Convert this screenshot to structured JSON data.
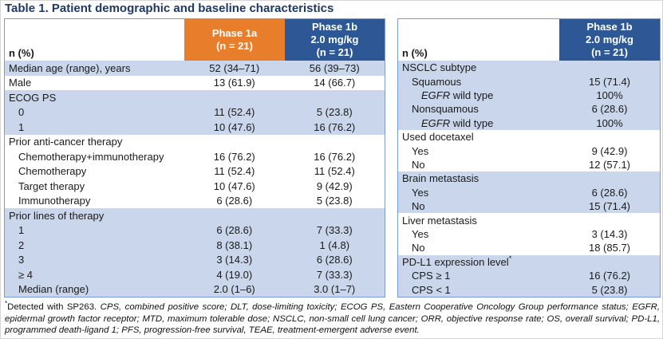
{
  "title": "Table 1. Patient demographic and baseline characteristics",
  "colors": {
    "phase1a_orange": "#E87E2B",
    "phase1b_blue": "#2D5795",
    "row_shade_blue": "#C9D6EB",
    "table_border_blue": "#7C9BD4",
    "title_navy": "#1F3864",
    "body_text": "#1A1A1A"
  },
  "left_table": {
    "header": {
      "label": "n (%)",
      "phase1a_lines": [
        "Phase 1a",
        "(n = 21)"
      ],
      "phase1b_lines": [
        "Phase 1b",
        "2.0 mg/kg",
        "(n = 21)"
      ]
    },
    "rows": [
      {
        "label": "Median age (range), years",
        "indent": 0,
        "values": [
          "52 (34–71)",
          "56 (39–73)"
        ],
        "shade": true
      },
      {
        "label": "Male",
        "indent": 0,
        "values": [
          "13 (61.9)",
          "14 (66.7)"
        ],
        "shade": false
      },
      {
        "label": "ECOG PS",
        "indent": 0,
        "values": [
          "",
          ""
        ],
        "shade": true
      },
      {
        "label": "0",
        "indent": 1,
        "values": [
          "11 (52.4)",
          "5 (23.8)"
        ],
        "shade": true
      },
      {
        "label": "1",
        "indent": 1,
        "values": [
          "10 (47.6)",
          "16 (76.2)"
        ],
        "shade": true
      },
      {
        "label": "Prior anti-cancer therapy",
        "indent": 0,
        "values": [
          "",
          ""
        ],
        "shade": false
      },
      {
        "label": "Chemotherapy+immunotherapy",
        "indent": 1,
        "values": [
          "16 (76.2)",
          "16 (76.2)"
        ],
        "shade": false
      },
      {
        "label": "Chemotherapy",
        "indent": 1,
        "values": [
          "11 (52.4)",
          "11 (52.4)"
        ],
        "shade": false
      },
      {
        "label": "Target therapy",
        "indent": 1,
        "values": [
          "10 (47.6)",
          "9 (42.9)"
        ],
        "shade": false
      },
      {
        "label": "Immunotherapy",
        "indent": 1,
        "values": [
          "6 (28.6)",
          "5 (23.8)"
        ],
        "shade": false
      },
      {
        "label": "Prior lines of therapy",
        "indent": 0,
        "values": [
          "",
          ""
        ],
        "shade": true
      },
      {
        "label": "1",
        "indent": 1,
        "values": [
          "6 (28.6)",
          "7 (33.3)"
        ],
        "shade": true
      },
      {
        "label": "2",
        "indent": 1,
        "values": [
          "8 (38.1)",
          "1 (4.8)"
        ],
        "shade": true
      },
      {
        "label": "3",
        "indent": 1,
        "values": [
          "3 (14.3)",
          "6 (28.6)"
        ],
        "shade": true
      },
      {
        "label": "≥ 4",
        "indent": 1,
        "values": [
          "4 (19.0)",
          "7 (33.3)"
        ],
        "shade": true
      },
      {
        "label": "Median (range)",
        "indent": 1,
        "values": [
          "2.0 (1–6)",
          "3.0 (1–7)"
        ],
        "shade": true
      }
    ]
  },
  "right_table": {
    "header": {
      "label": "n (%)",
      "phase1b_lines": [
        "Phase 1b",
        "2.0 mg/kg",
        "(n = 21)"
      ]
    },
    "rows": [
      {
        "label": "NSCLC subtype",
        "indent": 0,
        "values": [
          ""
        ],
        "shade": true
      },
      {
        "label": "Squamous",
        "indent": 1,
        "values": [
          "15 (71.4)"
        ],
        "shade": true
      },
      {
        "italic_lead": "EGFR",
        "label": " wild type",
        "indent": 2,
        "values": [
          "100%"
        ],
        "shade": true
      },
      {
        "label": "Nonsquamous",
        "indent": 1,
        "values": [
          "6 (28.6)"
        ],
        "shade": true
      },
      {
        "italic_lead": "EGFR",
        "label": " wild type",
        "indent": 2,
        "values": [
          "100%"
        ],
        "shade": true
      },
      {
        "label": "Used docetaxel",
        "indent": 0,
        "values": [
          ""
        ],
        "shade": false
      },
      {
        "label": "Yes",
        "indent": 1,
        "values": [
          "9 (42.9)"
        ],
        "shade": false
      },
      {
        "label": "No",
        "indent": 1,
        "values": [
          "12 (57.1)"
        ],
        "shade": false
      },
      {
        "label": "Brain metastasis",
        "indent": 0,
        "values": [
          ""
        ],
        "shade": true
      },
      {
        "label": "Yes",
        "indent": 1,
        "values": [
          "6 (28.6)"
        ],
        "shade": true
      },
      {
        "label": "No",
        "indent": 1,
        "values": [
          "15 (71.4)"
        ],
        "shade": true
      },
      {
        "label": "Liver metastasis",
        "indent": 0,
        "values": [
          ""
        ],
        "shade": false
      },
      {
        "label": "Yes",
        "indent": 1,
        "values": [
          "3 (14.3)"
        ],
        "shade": false
      },
      {
        "label": "No",
        "indent": 1,
        "values": [
          "18 (85.7)"
        ],
        "shade": false
      },
      {
        "label": "PD-L1 expression level",
        "sup": "*",
        "indent": 0,
        "values": [
          ""
        ],
        "shade": true
      },
      {
        "label": "CPS ≥ 1",
        "indent": 1,
        "values": [
          "16 (76.2)"
        ],
        "shade": true
      },
      {
        "label": "CPS < 1",
        "indent": 1,
        "values": [
          "5 (23.8)"
        ],
        "shade": true
      }
    ]
  },
  "footnote": {
    "marker": "*",
    "plain": "Detected with SP263.",
    "italic": "CPS, combined positive score; DLT, dose-limiting toxicity; ECOG PS, Eastern Cooperative Oncology Group performance status; EGFR, epidermal growth factor receptor; MTD, maximum tolerable dose; NSCLC, non-small cell lung cancer; ORR, objective response rate; OS, overall survival; PD-L1, programmed death-ligand 1; PFS, progression-free survival, TEAE, treatment-emergent adverse event."
  }
}
